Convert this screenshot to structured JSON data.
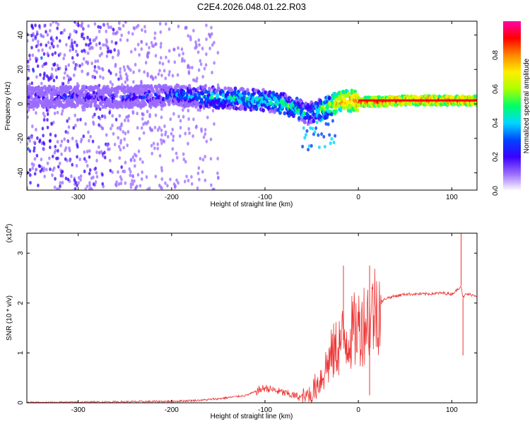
{
  "title": "C2E4.2026.048.01.22.R03",
  "chart_data": [
    {
      "type": "heatmap",
      "xlabel": "Height of straight line (km)",
      "ylabel": "Frequency (Hz)",
      "xlim": [
        -355,
        127
      ],
      "ylim": [
        -50,
        48
      ],
      "xticks": [
        -300,
        -200,
        -100,
        0,
        100
      ],
      "yticks": [
        -40,
        -20,
        0,
        20,
        40
      ],
      "colorbar": {
        "label": "Normalized spectral amplitude",
        "range": [
          0,
          1
        ],
        "ticks": [
          "0.0",
          "0.2",
          "0.4",
          "0.6",
          "0.8"
        ],
        "colors": [
          "#ffffff",
          "#9b6bff",
          "#3a00ff",
          "#0044ff",
          "#00d8ff",
          "#00ff66",
          "#aaff00",
          "#ffee00",
          "#ff8800",
          "#ff0000",
          "#ff00aa"
        ]
      },
      "ridge": {
        "x": [
          -355,
          -300,
          -250,
          -200,
          -160,
          -130,
          -100,
          -80,
          -65,
          -55,
          -45,
          -35,
          -20,
          -10,
          0,
          50,
          100,
          127
        ],
        "freq": [
          4,
          4,
          4,
          5,
          4,
          3,
          2,
          0,
          -3,
          -6,
          -4,
          -2,
          1,
          2,
          1,
          2,
          2,
          2
        ],
        "amplitude": [
          0.25,
          0.3,
          0.3,
          0.4,
          0.5,
          0.55,
          0.55,
          0.6,
          0.55,
          0.5,
          0.55,
          0.65,
          0.85,
          0.9,
          0.95,
          0.95,
          0.95,
          0.95
        ]
      },
      "noise_extent_x": [
        -355,
        -150
      ]
    },
    {
      "type": "line",
      "xlabel": "Height of straight line (km)",
      "ylabel": "SNR (10 * v/v)",
      "exponent_label": "(x10",
      "exponent_value": "4",
      "exponent_close": ")",
      "xlim": [
        -355,
        127
      ],
      "ylim": [
        0,
        3.4
      ],
      "xticks": [
        -300,
        -200,
        -100,
        0,
        100
      ],
      "yticks": [
        0,
        1,
        2,
        3
      ],
      "color": "#ee3333",
      "series": [
        {
          "name": "SNR",
          "x": [
            -355,
            -300,
            -250,
            -200,
            -170,
            -150,
            -120,
            -100,
            -80,
            -60,
            -50,
            -40,
            -30,
            -20,
            -10,
            0,
            10,
            20,
            30,
            50,
            70,
            90,
            100,
            105,
            110,
            112,
            115,
            127
          ],
          "y": [
            0.0,
            0.01,
            0.02,
            0.03,
            0.05,
            0.08,
            0.15,
            0.3,
            0.2,
            0.1,
            0.2,
            0.5,
            0.9,
            1.2,
            1.35,
            1.5,
            1.7,
            1.95,
            2.1,
            2.18,
            2.18,
            2.2,
            2.18,
            2.25,
            2.35,
            2.1,
            2.18,
            2.15
          ],
          "spikes": [
            {
              "x": -16,
              "y": 2.75
            },
            {
              "x": 12,
              "y": 2.75
            },
            {
              "x": 12,
              "y": 0.15
            },
            {
              "x": 110,
              "y": 3.4
            },
            {
              "x": 112,
              "y": 0.95
            }
          ]
        }
      ]
    }
  ]
}
